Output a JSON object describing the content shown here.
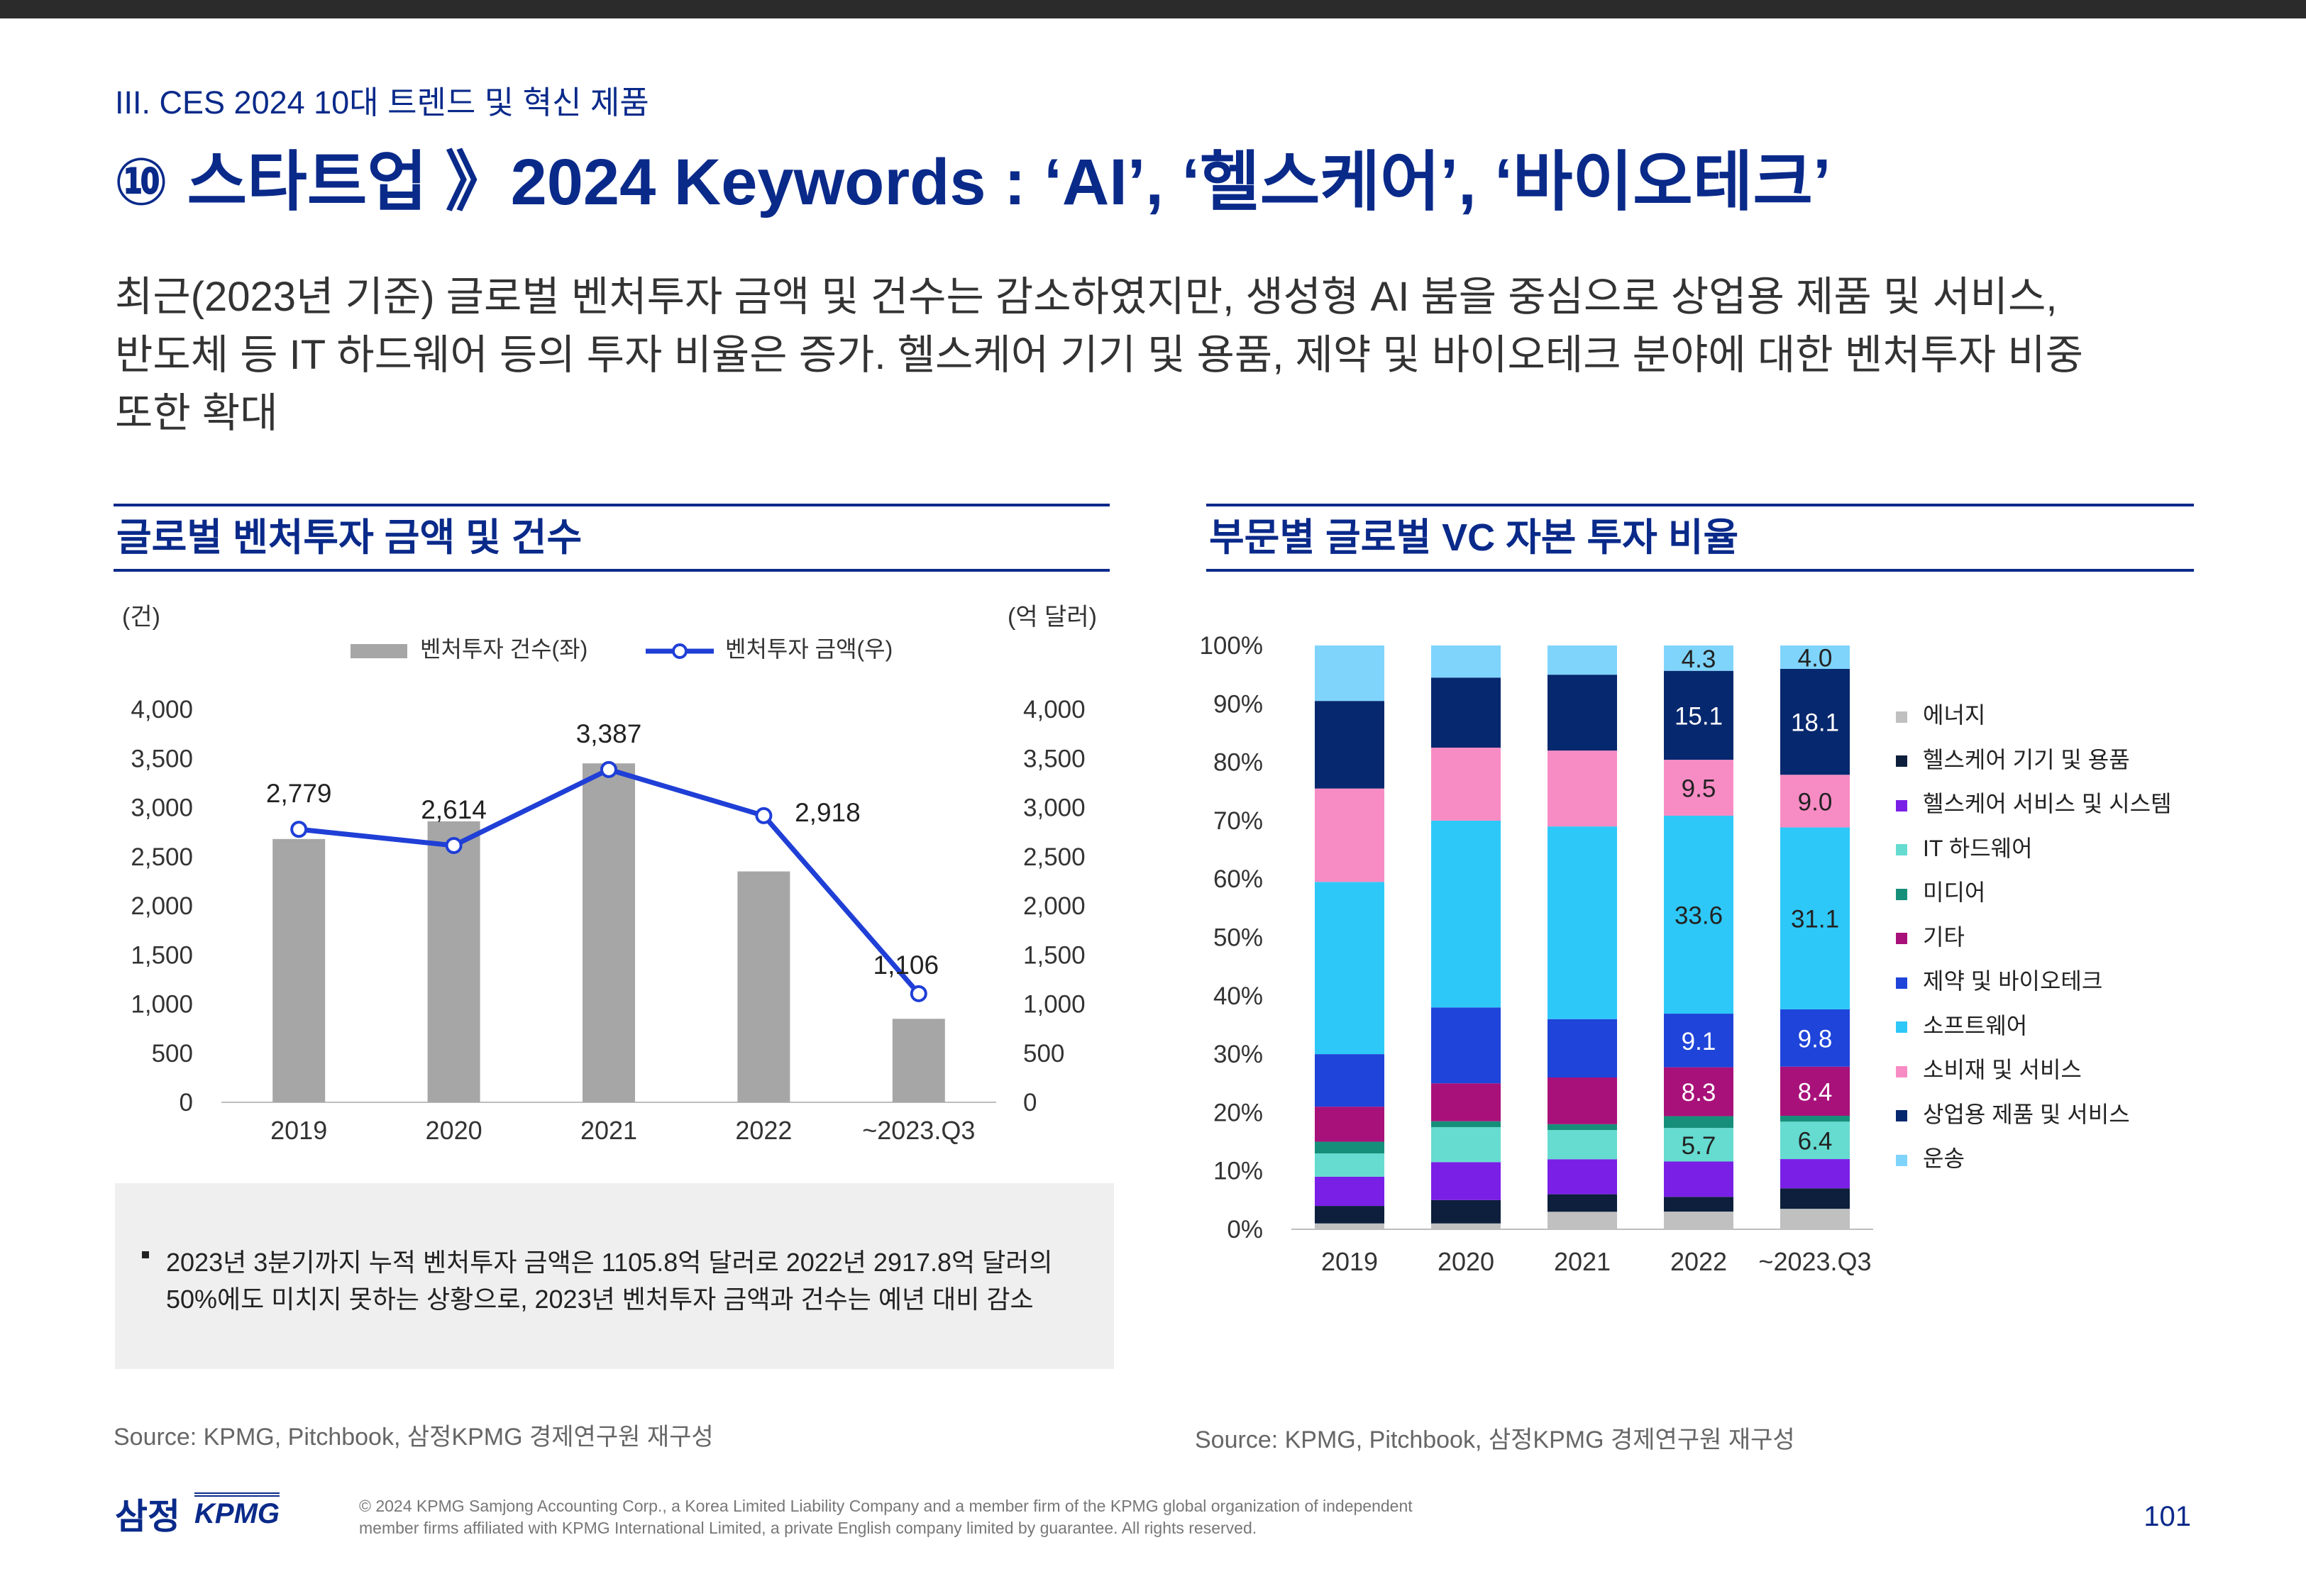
{
  "header": {
    "section": "III. CES 2024 10대 트렌드 및 혁신 제품",
    "title": "⑩ 스타트업 》2024 Keywords : ‘AI’, ‘헬스케어’, ‘바이오테크’"
  },
  "description": [
    "최근(2023년 기준) 글로벌 벤처투자 금액 및 건수는 감소하였지만, 생성형 AI 붐을 중심으로 상업용 제품 및 서비스,",
    "반도체 등 IT 하드웨어 등의 투자 비율은 증가. 헬스케어 기기 및 용품, 제약 및 바이오테크 분야에 대한 벤처투자 비중",
    "또한 확대"
  ],
  "left_panel": {
    "title": "글로벌 벤처투자 금액 및 건수",
    "unit_left": "(건)",
    "unit_right": "(억 달러)",
    "note": "2023년 3분기까지 누적 벤처투자 금액은 1105.8억 달러로 2022년 2917.8억 달러의 50%에도 미치지 못하는 상황으로, 2023년 벤처투자 금액과 건수는 예년 대비 감소",
    "source": "Source: KPMG, Pitchbook, 삼정KPMG 경제연구원 재구성"
  },
  "right_panel": {
    "title": "부문별 글로벌 VC 자본 투자 비율",
    "source": "Source: KPMG, Pitchbook, 삼정KPMG 경제연구원 재구성"
  },
  "footer": {
    "logo_ko": "삼정",
    "logo_en": "KPMG",
    "copyright_1": "© 2024 KPMG Samjong Accounting Corp., a Korea Limited Liability Company and a member firm of the KPMG global organization of independent",
    "copyright_2": "member firms affiliated with KPMG International Limited, a private English company limited by guarantee. All rights reserved.",
    "page_number": "101"
  },
  "chart_data": [
    {
      "type": "bar+line",
      "categories": [
        "2019",
        "2020",
        "2021",
        "2022",
        "~2023.Q3"
      ],
      "series": [
        {
          "name": "벤처투자 건수(좌)",
          "type": "bar",
          "axis": "left",
          "color": "#a6a6a6",
          "values": [
            2680,
            2860,
            3450,
            2350,
            850
          ]
        },
        {
          "name": "벤처투자 금액(우)",
          "type": "line",
          "axis": "right",
          "color": "#1f3fd6",
          "values": [
            2779,
            2614,
            3387,
            2918,
            1106
          ],
          "labels": [
            "2,779",
            "2,614",
            "3,387",
            "2,918",
            "1,106"
          ]
        }
      ],
      "ylim_left": [
        0,
        4000
      ],
      "ylim_right": [
        0,
        4000
      ],
      "yticks": [
        0,
        500,
        1000,
        1500,
        2000,
        2500,
        3000,
        3500,
        4000
      ],
      "ytick_labels": [
        "0",
        "500",
        "1,000",
        "1,500",
        "2,000",
        "2,500",
        "3,000",
        "3,500",
        "4,000"
      ],
      "legend": "top-center",
      "grid": false
    },
    {
      "type": "stacked_bar_100",
      "categories": [
        "2019",
        "2020",
        "2021",
        "2022",
        "~2023.Q3"
      ],
      "yticks": [
        0,
        10,
        20,
        30,
        40,
        50,
        60,
        70,
        80,
        90,
        100
      ],
      "ytick_labels": [
        "0%",
        "10%",
        "20%",
        "30%",
        "40%",
        "50%",
        "60%",
        "70%",
        "80%",
        "90%",
        "100%"
      ],
      "series": [
        {
          "name": "에너지",
          "color": "#c0c0c0",
          "values": [
            1.0,
            1.0,
            3.0,
            3.0,
            3.5
          ]
        },
        {
          "name": "헬스케어 기기 및 용품",
          "color": "#0d1f3c",
          "values": [
            3.0,
            4.0,
            3.0,
            2.5,
            3.5
          ]
        },
        {
          "name": "헬스케어 서비스 및 시스템",
          "color": "#7a1fe6",
          "values": [
            5.0,
            6.5,
            6.0,
            6.0,
            5.0
          ]
        },
        {
          "name": "IT 하드웨어",
          "color": "#66dbd0",
          "values": [
            4.0,
            6.0,
            5.0,
            5.7,
            6.4
          ]
        },
        {
          "name": "미디어",
          "color": "#168f7a",
          "values": [
            2.0,
            1.0,
            1.0,
            2.0,
            1.0
          ]
        },
        {
          "name": "기타",
          "color": "#a8117a",
          "values": [
            6.0,
            6.5,
            8.0,
            8.3,
            8.4
          ]
        },
        {
          "name": "제약 및 바이오테크",
          "color": "#1e44d9",
          "values": [
            9.0,
            13.0,
            10.0,
            9.1,
            9.8
          ]
        },
        {
          "name": "소프트웨어",
          "color": "#2ec8f8",
          "values": [
            29.5,
            32.0,
            33.0,
            33.6,
            31.1
          ]
        },
        {
          "name": "소비재 및 서비스",
          "color": "#f78cc4",
          "values": [
            16.0,
            12.5,
            13.0,
            9.5,
            9.0
          ]
        },
        {
          "name": "상업용 제품 및 서비스",
          "color": "#06286e",
          "values": [
            15.0,
            12.0,
            13.0,
            15.1,
            18.1
          ]
        },
        {
          "name": "운송",
          "color": "#7fd4fb",
          "values": [
            9.5,
            5.5,
            5.0,
            4.3,
            4.0
          ]
        }
      ],
      "data_labels": [
        {
          "category": "2022",
          "series": "IT 하드웨어",
          "text": "5.7"
        },
        {
          "category": "2022",
          "series": "기타",
          "text": "8.3"
        },
        {
          "category": "2022",
          "series": "제약 및 바이오테크",
          "text": "9.1"
        },
        {
          "category": "2022",
          "series": "소프트웨어",
          "text": "33.6"
        },
        {
          "category": "2022",
          "series": "소비재 및 서비스",
          "text": "9.5"
        },
        {
          "category": "2022",
          "series": "상업용 제품 및 서비스",
          "text": "15.1"
        },
        {
          "category": "2022",
          "series": "운송",
          "text": "4.3"
        },
        {
          "category": "~2023.Q3",
          "series": "IT 하드웨어",
          "text": "6.4"
        },
        {
          "category": "~2023.Q3",
          "series": "기타",
          "text": "8.4"
        },
        {
          "category": "~2023.Q3",
          "series": "제약 및 바이오테크",
          "text": "9.8"
        },
        {
          "category": "~2023.Q3",
          "series": "소프트웨어",
          "text": "31.1"
        },
        {
          "category": "~2023.Q3",
          "series": "소비재 및 서비스",
          "text": "9.0"
        },
        {
          "category": "~2023.Q3",
          "series": "상업용 제품 및 서비스",
          "text": "18.1"
        },
        {
          "category": "~2023.Q3",
          "series": "운송",
          "text": "4.0"
        }
      ],
      "legend": "right",
      "grid": false
    }
  ]
}
